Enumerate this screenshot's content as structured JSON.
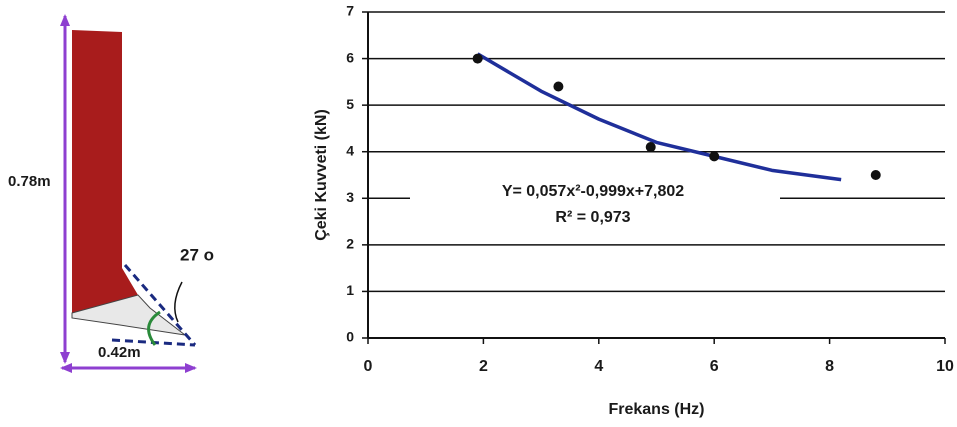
{
  "diagram": {
    "height_label": "0.78m",
    "width_label": "0.42m",
    "angle_label": "27 o"
  },
  "chart_data": {
    "type": "scatter",
    "x_label": "Frekans (Hz)",
    "y_label": "Çeki Kuvveti  (kN)",
    "xlim": [
      0,
      10
    ],
    "xticks": [
      0,
      2,
      4,
      6,
      8,
      10
    ],
    "ylim": [
      0,
      7
    ],
    "yticks": [
      0,
      1,
      2,
      3,
      4,
      5,
      6,
      7
    ],
    "grid": true,
    "points": {
      "color": "#111111",
      "x": [
        1.9,
        3.3,
        4.9,
        6.0,
        8.8
      ],
      "values": [
        6.0,
        5.4,
        4.1,
        3.9,
        3.5
      ]
    },
    "trendline": {
      "color": "#1f2f9a",
      "x": [
        1.9,
        3,
        4,
        5,
        6,
        7,
        8.2
      ],
      "values": [
        6.1,
        5.3,
        4.7,
        4.2,
        3.9,
        3.6,
        3.4
      ],
      "equation": "Y= 0,057x²-0,999x+7,802",
      "r2": "R² = 0,973"
    }
  }
}
